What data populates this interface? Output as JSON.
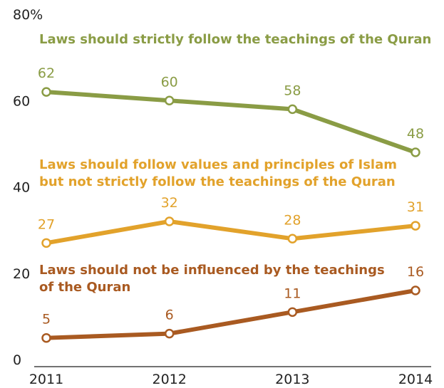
{
  "chart_data": {
    "type": "line",
    "x": [
      2011,
      2012,
      2013,
      2014
    ],
    "ylim": [
      0,
      80
    ],
    "y_ticks": [
      "0",
      "20",
      "40",
      "60",
      "80%"
    ],
    "x_ticks": [
      "2011",
      "2012",
      "2013",
      "2014"
    ],
    "grid": false,
    "series": [
      {
        "name": "Laws should strictly follow the teachings of the Quran",
        "label_lines": [
          "Laws should strictly follow the teachings of the Quran"
        ],
        "values": [
          62,
          60,
          58,
          48
        ],
        "value_labels": [
          "62",
          "60",
          "58",
          "48"
        ],
        "color": "#8a9c45"
      },
      {
        "name": "Laws should follow values and principles of Islam but not strictly follow the teachings of the Quran",
        "label_lines": [
          "Laws should follow values and principles of Islam",
          "but not strictly follow the teachings of the Quran"
        ],
        "values": [
          27,
          32,
          28,
          31
        ],
        "value_labels": [
          "27",
          "32",
          "28",
          "31"
        ],
        "color": "#e2a22b"
      },
      {
        "name": "Laws should not be influenced by the teachings of the Quran",
        "label_lines": [
          "Laws should not be influenced by the teachings",
          "of the Quran"
        ],
        "values": [
          5,
          6,
          11,
          16
        ],
        "value_labels": [
          "5",
          "6",
          "11",
          "16"
        ],
        "color": "#a95a21"
      }
    ]
  }
}
